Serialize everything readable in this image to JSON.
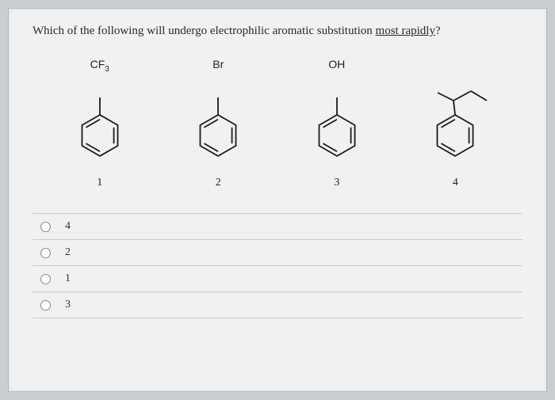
{
  "question": {
    "prefix": "Which of the following will undergo electrophilic aromatic substitution ",
    "emphasis": "most rapidly",
    "suffix": "?"
  },
  "molecules": [
    {
      "substituent": "CF3",
      "has_sub": true,
      "number": "1",
      "type": "simple"
    },
    {
      "substituent": "Br",
      "has_sub": false,
      "number": "2",
      "type": "simple"
    },
    {
      "substituent": "OH",
      "has_sub": false,
      "number": "3",
      "type": "simple"
    },
    {
      "substituent": "",
      "has_sub": false,
      "number": "4",
      "type": "propyl"
    }
  ],
  "options": [
    {
      "value": "4"
    },
    {
      "value": "2"
    },
    {
      "value": "1"
    },
    {
      "value": "3"
    }
  ],
  "style": {
    "stroke": "#1a1a1a",
    "stroke_width": 1.8
  }
}
